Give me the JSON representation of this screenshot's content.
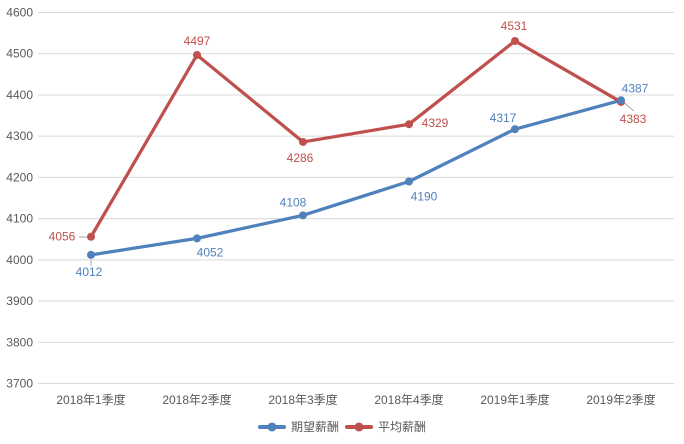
{
  "chart_data": {
    "type": "line",
    "title": "",
    "categories": [
      "2018年1季度",
      "2018年2季度",
      "2018年3季度",
      "2018年4季度",
      "2019年1季度",
      "2019年2季度"
    ],
    "series": [
      {
        "id": "expected-salary",
        "name": "期望薪酬",
        "color": "#4F81BD",
        "values": [
          4012,
          4052,
          4108,
          4190,
          4317,
          4387
        ],
        "label_offsets": [
          [
            -2,
            17
          ],
          [
            13,
            14
          ],
          [
            -10,
            -13
          ],
          [
            15,
            15
          ],
          [
            -12,
            -11
          ],
          [
            14,
            -12
          ]
        ]
      },
      {
        "id": "average-salary",
        "name": "平均薪酬",
        "color": "#C0504D",
        "values": [
          4056,
          4497,
          4286,
          4329,
          4531,
          4383
        ],
        "label_offsets": [
          [
            -29,
            0
          ],
          [
            0,
            -14
          ],
          [
            -3,
            16
          ],
          [
            26,
            -1
          ],
          [
            -1,
            -15
          ],
          [
            12,
            17
          ]
        ]
      }
    ],
    "xlabel": "",
    "ylabel": "",
    "ylim": [
      3700,
      4600
    ],
    "ytick_step": 100,
    "yticks": [
      3700,
      3800,
      3900,
      4000,
      4100,
      4200,
      4300,
      4400,
      4500,
      4600
    ],
    "grid": true,
    "legend_position": "bottom",
    "leader_lines": [
      {
        "from": [
          91,
          260
        ],
        "to": [
          91,
          266
        ]
      },
      {
        "from": [
          79,
          237
        ],
        "to": [
          87,
          237
        ]
      },
      {
        "from": [
          623,
          102
        ],
        "to": [
          634,
          111
        ]
      }
    ],
    "colors": {
      "gridline": "#D9D9D9",
      "axis_text": "#595959",
      "leader": "#A6A6A6",
      "background": "#FFFFFF"
    }
  }
}
